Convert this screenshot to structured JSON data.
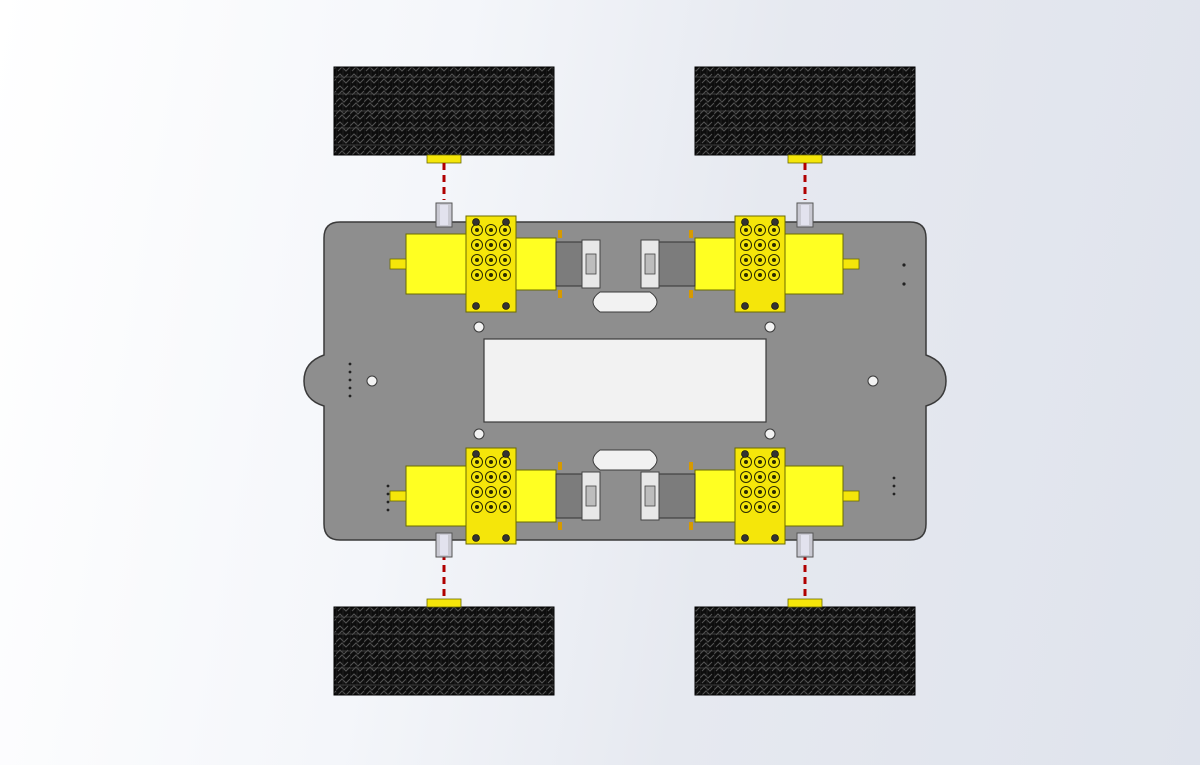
{
  "view": {
    "background_start": "#ffffff",
    "background_end": "#dfe3ec"
  },
  "assembly": {
    "wheel_count": 4,
    "motor_count": 4,
    "colors": {
      "chassis": "#8e8e8e",
      "chassis_edge": "#3a3a3a",
      "tire": "#0d0d0d",
      "tire_tread": "#4a4a4a",
      "motor": "#ffff22",
      "motor_edge": "#6b6b00",
      "gearbox": "#f5e60a",
      "shaft": "#c9c9d2",
      "bracket": "#e8e8e8",
      "axis_line": "#b00000",
      "cutout": "#f2f2f2"
    }
  }
}
